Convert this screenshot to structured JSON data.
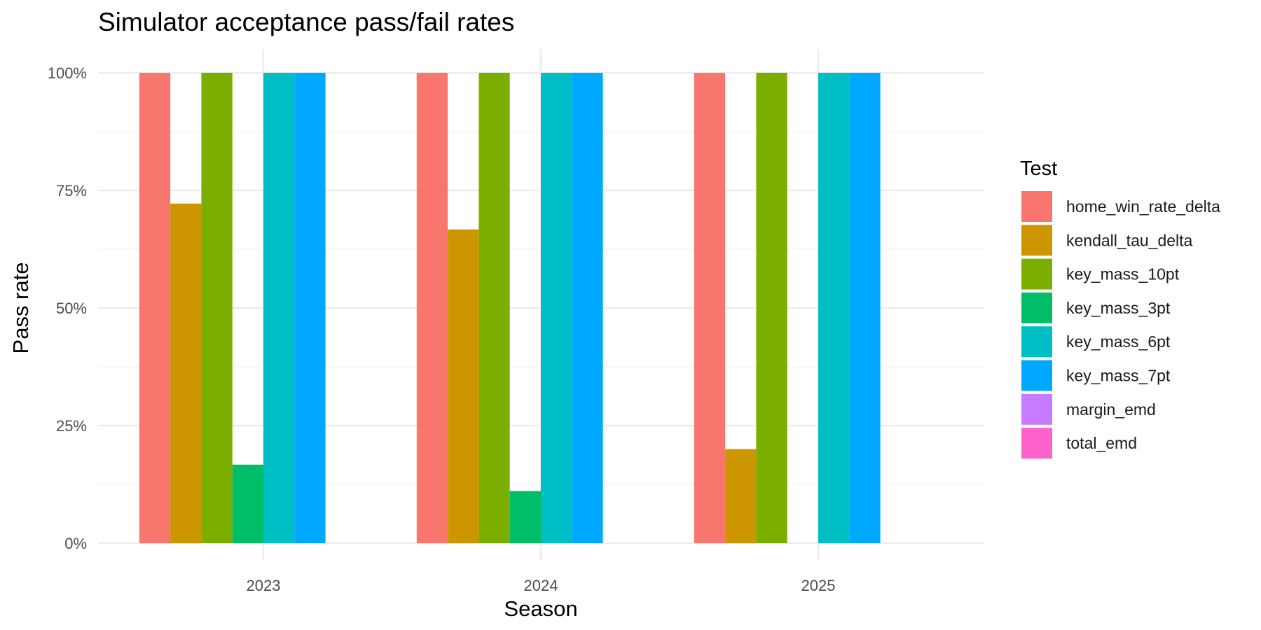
{
  "chart_data": {
    "type": "bar",
    "title": "Simulator acceptance pass/fail rates",
    "xlabel": "Season",
    "ylabel": "Pass rate",
    "categories": [
      "2023",
      "2024",
      "2025"
    ],
    "ylim": [
      0,
      1
    ],
    "y_ticks": [
      0,
      0.25,
      0.5,
      0.75,
      1
    ],
    "y_tick_labels": [
      "0%",
      "25%",
      "50%",
      "75%",
      "100%"
    ],
    "grid": true,
    "legend": {
      "title": "Test",
      "placement": "right"
    },
    "series": [
      {
        "name": "home_win_rate_delta",
        "color": "#F8766D",
        "values": [
          1.0,
          1.0,
          1.0
        ]
      },
      {
        "name": "kendall_tau_delta",
        "color": "#CD9600",
        "values": [
          0.722,
          0.667,
          0.2
        ]
      },
      {
        "name": "key_mass_10pt",
        "color": "#7CAE00",
        "values": [
          1.0,
          1.0,
          1.0
        ]
      },
      {
        "name": "key_mass_3pt",
        "color": "#00BE67",
        "values": [
          0.167,
          0.111,
          0.0
        ]
      },
      {
        "name": "key_mass_6pt",
        "color": "#00BFC4",
        "values": [
          1.0,
          1.0,
          1.0
        ]
      },
      {
        "name": "key_mass_7pt",
        "color": "#00A9FF",
        "values": [
          1.0,
          1.0,
          1.0
        ]
      },
      {
        "name": "margin_emd",
        "color": "#C77CFF",
        "values": [
          0.0,
          0.0,
          0.0
        ]
      },
      {
        "name": "total_emd",
        "color": "#FF61CC",
        "values": [
          0.0,
          0.0,
          0.0
        ]
      }
    ]
  }
}
